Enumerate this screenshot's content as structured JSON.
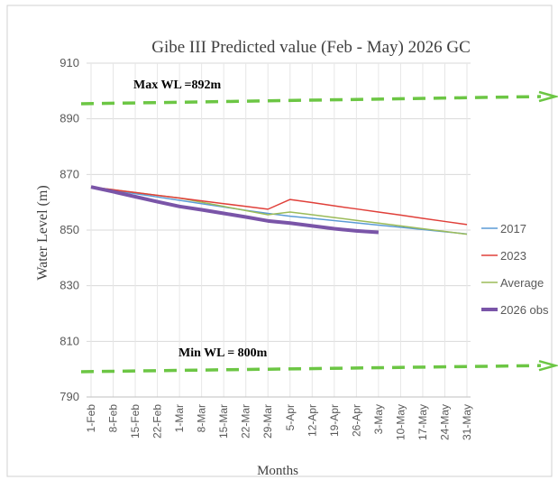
{
  "chart_data": {
    "type": "line",
    "title": "Gibe III Predicted value (Feb - May) 2026 GC",
    "x_label": "Months",
    "y_label": "Water Level (m)",
    "categories": [
      "1-Feb",
      "8-Feb",
      "15-Feb",
      "22-Feb",
      "1-Mar",
      "8-Mar",
      "15-Mar",
      "22-Mar",
      "29-Mar",
      "5-Apr",
      "12-Apr",
      "19-Apr",
      "26-Apr",
      "3-May",
      "10-May",
      "17-May",
      "24-May",
      "31-May"
    ],
    "series": [
      {
        "name": "2017",
        "color": "#5b9bd5",
        "width": 1.5,
        "values": [
          865.5,
          864.3,
          863.1,
          861.9,
          860.7,
          859.5,
          858.3,
          857.1,
          856,
          855,
          854.2,
          853.4,
          852.6,
          851.8,
          851,
          850.2,
          849.4,
          848.6
        ]
      },
      {
        "name": "2023",
        "color": "#e0403a",
        "width": 1.5,
        "values": [
          865.5,
          864.5,
          863.5,
          862.5,
          861.5,
          860.5,
          859.5,
          858.5,
          857.5,
          861,
          859.9,
          858.7,
          857.6,
          856.5,
          855.4,
          854.2,
          853.1,
          852
        ]
      },
      {
        "name": "Average",
        "color": "#9bbb59",
        "width": 1.5,
        "values": [
          865.5,
          864.5,
          863.5,
          862.5,
          861.5,
          860,
          858.5,
          857,
          855.5,
          856.5,
          855.5,
          854.5,
          853.5,
          852.5,
          851.5,
          850.5,
          849.5,
          848.5
        ]
      },
      {
        "name": "2026 obs",
        "color": "#7a55a8",
        "width": 4,
        "values": [
          865.5,
          863.8,
          862,
          860.2,
          858.5,
          857.3,
          856,
          854.7,
          853.3,
          852.5,
          851.5,
          850.5,
          849.7,
          849.2,
          null,
          null,
          null,
          null
        ]
      }
    ],
    "ylim": [
      790,
      910
    ],
    "yticks": [
      790,
      810,
      830,
      850,
      870,
      890,
      910
    ],
    "grid": true,
    "legend": "right",
    "reference_lines": [
      {
        "label": "Max WL =892m",
        "from": 895.4,
        "to": 898,
        "color": "#6cc644"
      },
      {
        "label": "Min WL = 800m",
        "from": 799.1,
        "to": 801.3,
        "color": "#6cc644"
      }
    ]
  }
}
